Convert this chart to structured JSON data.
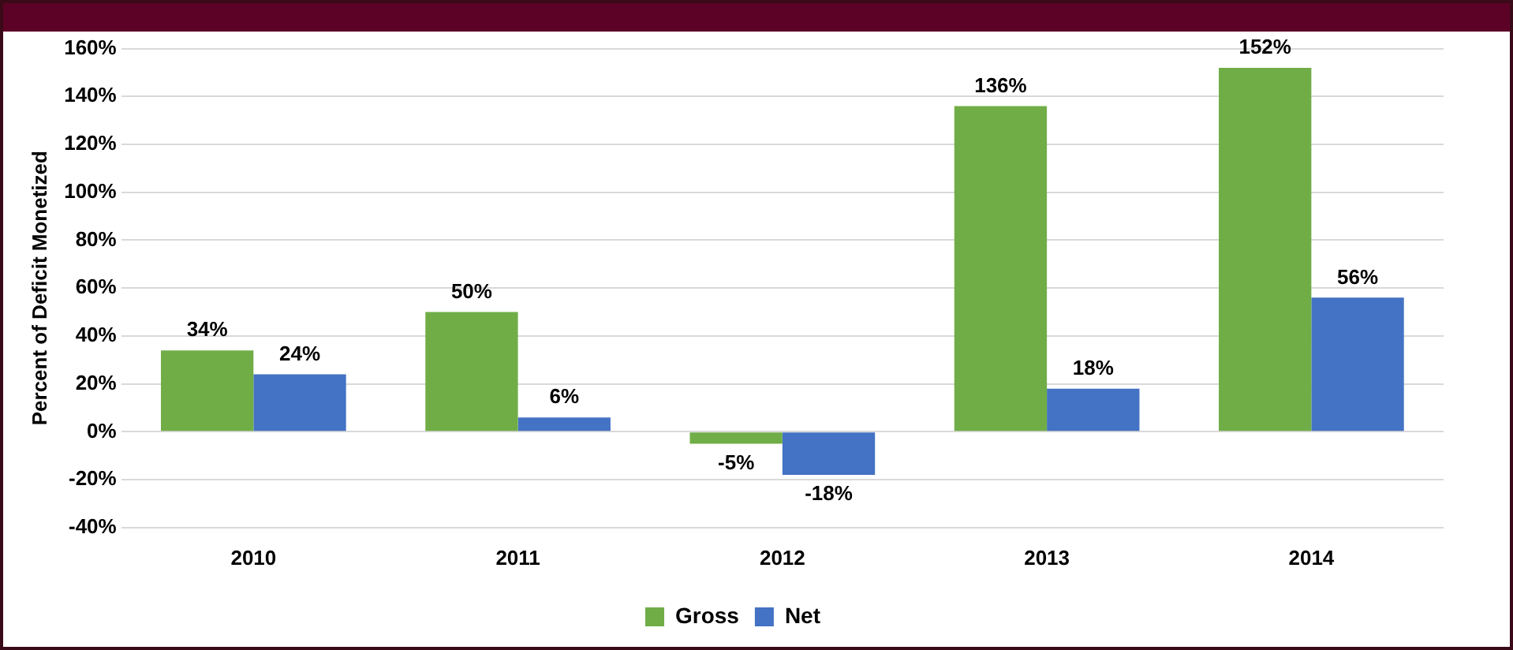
{
  "chart_data": {
    "type": "bar",
    "ylabel": "Percent of Deficit Monetized",
    "categories": [
      "2010",
      "2011",
      "2012",
      "2013",
      "2014"
    ],
    "series": [
      {
        "name": "Gross",
        "color": "#70ad47",
        "values": [
          34,
          50,
          -5,
          136,
          152
        ],
        "value_labels": [
          "34%",
          "50%",
          "-5%",
          "136%",
          "152%"
        ]
      },
      {
        "name": "Net",
        "color": "#4472c4",
        "values": [
          24,
          6,
          -18,
          18,
          56
        ],
        "value_labels": [
          "24%",
          "6%",
          "-18%",
          "18%",
          "56%"
        ]
      }
    ],
    "ylim": [
      -40,
      160
    ],
    "yticks": [
      {
        "value": -40,
        "label": "-40%"
      },
      {
        "value": -20,
        "label": "-20%"
      },
      {
        "value": 0,
        "label": "0%"
      },
      {
        "value": 20,
        "label": "20%"
      },
      {
        "value": 40,
        "label": "40%"
      },
      {
        "value": 60,
        "label": "60%"
      },
      {
        "value": 80,
        "label": "80%"
      },
      {
        "value": 100,
        "label": "100%"
      },
      {
        "value": 120,
        "label": "120%"
      },
      {
        "value": 140,
        "label": "140%"
      },
      {
        "value": 160,
        "label": "160%"
      }
    ],
    "grid": "y",
    "legend": "bottom"
  }
}
